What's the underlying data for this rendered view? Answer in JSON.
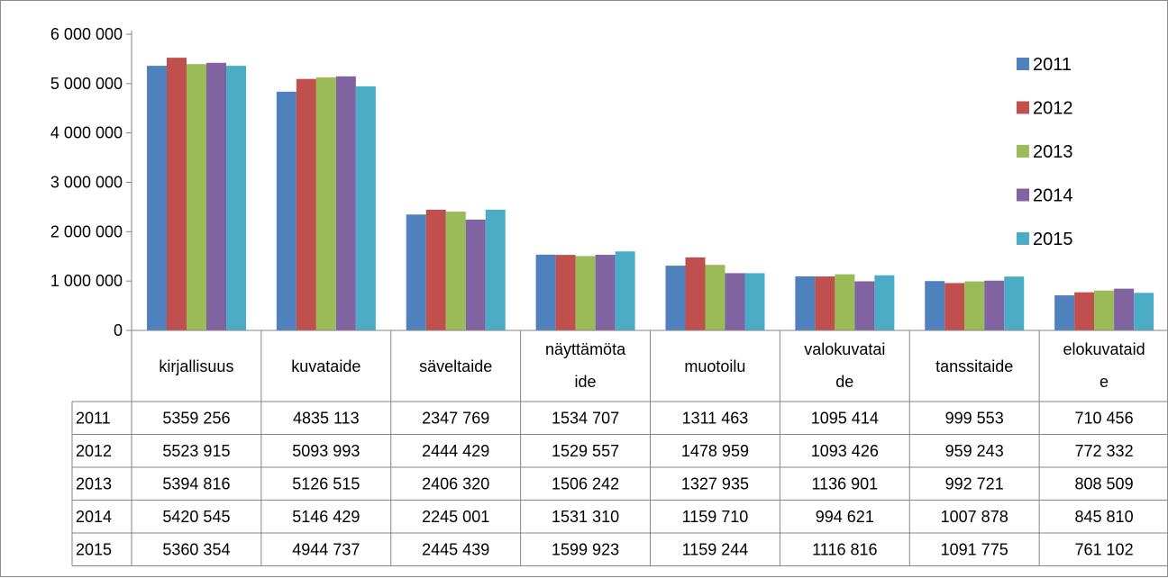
{
  "chart_data": {
    "type": "bar",
    "title": "",
    "xlabel": "",
    "ylabel": "",
    "ylim": [
      0,
      6000000
    ],
    "y_ticks": [
      0,
      1000000,
      2000000,
      3000000,
      4000000,
      5000000,
      6000000
    ],
    "y_tick_labels": [
      "0",
      "1 000 000",
      "2 000 000",
      "3 000 000",
      "4 000 000",
      "5 000 000",
      "6 000 000"
    ],
    "grid": false,
    "legend_position": "right",
    "categories": [
      [
        "kirjallisuus"
      ],
      [
        "kuvataide"
      ],
      [
        "säveltaide"
      ],
      [
        "näyttämöta",
        "ide"
      ],
      [
        "muotoilu"
      ],
      [
        "valokuvatai",
        "de"
      ],
      [
        "tanssitaide"
      ],
      [
        "elokuvataid",
        "e"
      ]
    ],
    "series": [
      {
        "name": "2011",
        "color": "#4F81BD",
        "values": [
          5359256,
          4835113,
          2347769,
          1534707,
          1311463,
          1095414,
          999553,
          710456
        ],
        "labels": [
          "5359 256",
          "4835 113",
          "2347 769",
          "1534 707",
          "1311 463",
          "1095 414",
          "999 553",
          "710 456"
        ]
      },
      {
        "name": "2012",
        "color": "#C0504D",
        "values": [
          5523915,
          5093993,
          2444429,
          1529557,
          1478959,
          1093426,
          959243,
          772332
        ],
        "labels": [
          "5523 915",
          "5093 993",
          "2444 429",
          "1529 557",
          "1478 959",
          "1093 426",
          "959 243",
          "772 332"
        ]
      },
      {
        "name": "2013",
        "color": "#9BBB59",
        "values": [
          5394816,
          5126515,
          2406320,
          1506242,
          1327935,
          1136901,
          992721,
          808509
        ],
        "labels": [
          "5394 816",
          "5126 515",
          "2406 320",
          "1506 242",
          "1327 935",
          "1136 901",
          "992 721",
          "808 509"
        ]
      },
      {
        "name": "2014",
        "color": "#8064A2",
        "values": [
          5420545,
          5146429,
          2245001,
          1531310,
          1159710,
          994621,
          1007878,
          845810
        ],
        "labels": [
          "5420 545",
          "5146 429",
          "2245 001",
          "1531 310",
          "1159 710",
          "994 621",
          "1007 878",
          "845 810"
        ]
      },
      {
        "name": "2015",
        "color": "#4BACC6",
        "values": [
          5360354,
          4944737,
          2445439,
          1599923,
          1159244,
          1116816,
          1091775,
          761102
        ],
        "labels": [
          "5360 354",
          "4944 737",
          "2445 439",
          "1599 923",
          "1159 244",
          "1116 816",
          "1091 775",
          "761 102"
        ]
      }
    ]
  }
}
